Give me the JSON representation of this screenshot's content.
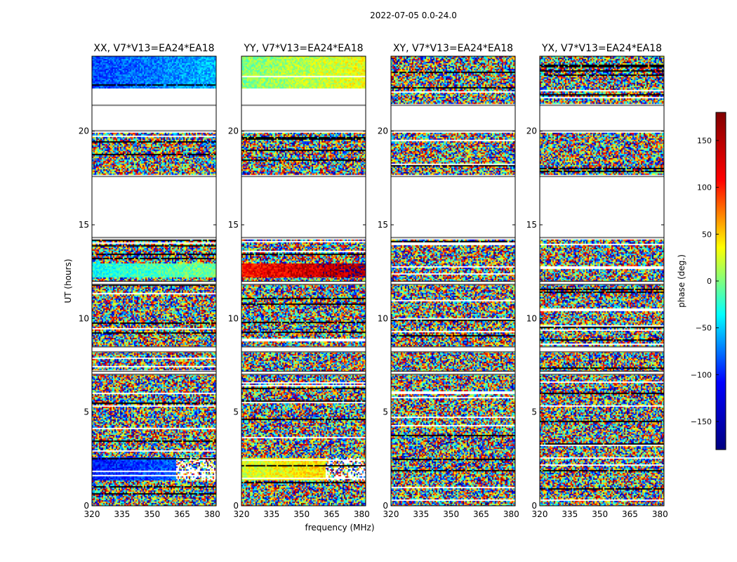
{
  "figure": {
    "suptitle": "2022-07-05 0.0-24.0",
    "xlabel": "frequency (MHz)",
    "ylabel": "UT (hours)",
    "colorbar_label": "phase (deg.)",
    "colorbar_ticks": [
      "150",
      "100",
      "50",
      "0",
      "−50",
      "−100",
      "−150"
    ]
  },
  "chart_data": {
    "type": "heatmap",
    "title": "2022-07-05 0.0-24.0",
    "xlabel": "frequency (MHz)",
    "ylabel": "UT (hours)",
    "xlim": [
      320,
      382
    ],
    "ylim": [
      0,
      24
    ],
    "xticks": [
      320,
      335,
      350,
      365,
      380
    ],
    "xtick_labels": [
      "320",
      "335",
      "350",
      "365",
      "380"
    ],
    "yticks": [
      0,
      5,
      10,
      15,
      20
    ],
    "ytick_labels": [
      "0",
      "5",
      "10",
      "15",
      "20"
    ],
    "colorbar": {
      "label": "phase (deg.)",
      "range": [
        -180,
        180
      ],
      "ticks": [
        150,
        100,
        50,
        0,
        -50,
        -100,
        -150
      ],
      "colormap": "jet",
      "colormap_stops": [
        "#000080",
        "#0000ff",
        "#00ffff",
        "#ffff00",
        "#ff0000",
        "#800000"
      ]
    },
    "panels": [
      {
        "title": "XX, V7*V13=EA24*EA18",
        "regions": [
          {
            "ut_range": [
              0.0,
              1.4
            ],
            "kind": "noise"
          },
          {
            "ut_range": [
              1.4,
              2.6
            ],
            "kind": "coherent",
            "phase_deg": -130,
            "freq_cut_mhz": 362
          },
          {
            "ut_range": [
              2.6,
              13.0
            ],
            "kind": "noise"
          },
          {
            "ut_range": [
              12.2,
              13.0
            ],
            "kind": "coherent",
            "phase_deg": -40
          },
          {
            "ut_range": [
              13.0,
              14.2
            ],
            "kind": "noise"
          },
          {
            "ut_range": [
              17.7,
              19.9
            ],
            "kind": "noise"
          },
          {
            "ut_range": [
              22.2,
              24.0
            ],
            "kind": "coherent",
            "phase_deg": -110
          }
        ],
        "gaps_ut": [
          [
            14.3,
            17.6
          ],
          [
            20.0,
            21.4
          ],
          [
            8.2,
            8.5
          ],
          [
            7.0,
            7.2
          ],
          [
            11.8,
            12.0
          ]
        ]
      },
      {
        "title": "YY, V7*V13=EA24*EA18",
        "regions": [
          {
            "ut_range": [
              0.0,
              1.4
            ],
            "kind": "noise"
          },
          {
            "ut_range": [
              1.4,
              2.6
            ],
            "kind": "coherent",
            "phase_deg": 30,
            "freq_cut_mhz": 362
          },
          {
            "ut_range": [
              2.6,
              12.2
            ],
            "kind": "noise"
          },
          {
            "ut_range": [
              12.2,
              13.0
            ],
            "kind": "coherent",
            "phase_deg": 130
          },
          {
            "ut_range": [
              13.0,
              14.2
            ],
            "kind": "noise"
          },
          {
            "ut_range": [
              17.7,
              19.9
            ],
            "kind": "noise"
          },
          {
            "ut_range": [
              22.2,
              24.0
            ],
            "kind": "coherent",
            "phase_deg": 0
          }
        ],
        "gaps_ut": [
          [
            14.3,
            17.6
          ],
          [
            20.0,
            21.4
          ],
          [
            8.2,
            8.5
          ],
          [
            7.0,
            7.2
          ],
          [
            11.8,
            12.0
          ]
        ]
      },
      {
        "title": "XY, V7*V13=EA24*EA18",
        "regions": [
          {
            "ut_range": [
              0.0,
              14.2
            ],
            "kind": "noise"
          },
          {
            "ut_range": [
              17.7,
              19.9
            ],
            "kind": "noise"
          },
          {
            "ut_range": [
              21.5,
              24.0
            ],
            "kind": "noise"
          }
        ],
        "gaps_ut": [
          [
            14.3,
            17.6
          ],
          [
            20.0,
            21.4
          ],
          [
            8.2,
            8.5
          ],
          [
            7.0,
            7.2
          ],
          [
            11.8,
            12.0
          ]
        ]
      },
      {
        "title": "YX, V7*V13=EA24*EA18",
        "regions": [
          {
            "ut_range": [
              0.0,
              14.2
            ],
            "kind": "noise"
          },
          {
            "ut_range": [
              17.7,
              19.9
            ],
            "kind": "noise"
          },
          {
            "ut_range": [
              21.5,
              24.0
            ],
            "kind": "noise"
          }
        ],
        "gaps_ut": [
          [
            14.3,
            17.6
          ],
          [
            20.0,
            21.4
          ],
          [
            8.2,
            8.5
          ],
          [
            7.0,
            7.2
          ],
          [
            11.8,
            12.0
          ]
        ]
      }
    ]
  }
}
